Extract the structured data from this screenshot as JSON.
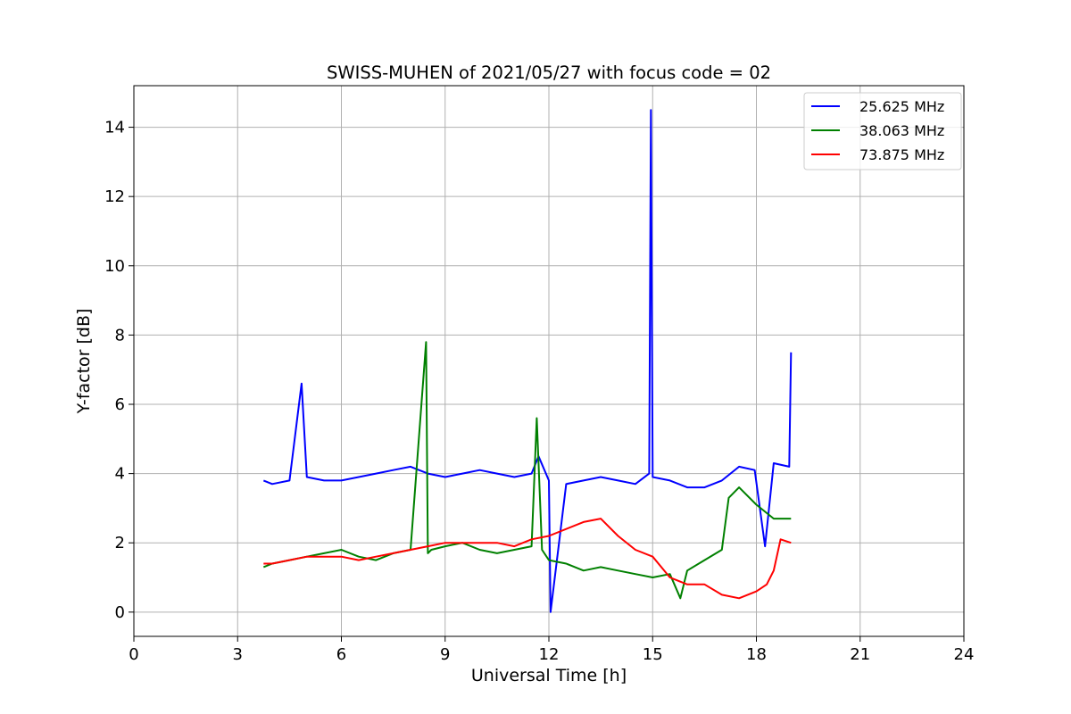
{
  "chart_data": {
    "type": "line",
    "title": "SWISS-MUHEN of 2021/05/27 with focus code = 02",
    "xlabel": "Universal Time [h]",
    "ylabel": "Y-factor [dB]",
    "xlim": [
      0,
      24
    ],
    "ylim": [
      -0.7,
      15.2
    ],
    "xticks": [
      0,
      3,
      6,
      9,
      12,
      15,
      18,
      21,
      24
    ],
    "yticks": [
      0,
      2,
      4,
      6,
      8,
      10,
      12,
      14
    ],
    "grid": true,
    "legend": {
      "placement": "top-right"
    },
    "series": [
      {
        "name": "25.625 MHz",
        "color": "#0000ff",
        "x": [
          3.75,
          4.0,
          4.5,
          4.85,
          5.0,
          5.5,
          6.0,
          6.5,
          7.0,
          7.5,
          8.0,
          8.5,
          9.0,
          9.5,
          10.0,
          10.5,
          11.0,
          11.5,
          11.7,
          12.0,
          12.05,
          12.5,
          13.0,
          13.5,
          14.0,
          14.5,
          14.9,
          14.95,
          15.0,
          15.5,
          16.0,
          16.5,
          17.0,
          17.5,
          17.95,
          18.25,
          18.5,
          18.95,
          19.0
        ],
        "y": [
          3.8,
          3.7,
          3.8,
          6.6,
          3.9,
          3.8,
          3.8,
          3.9,
          4.0,
          4.1,
          4.2,
          4.0,
          3.9,
          4.0,
          4.1,
          4.0,
          3.9,
          4.0,
          4.5,
          3.8,
          0.0,
          3.7,
          3.8,
          3.9,
          3.8,
          3.7,
          4.0,
          14.5,
          3.9,
          3.8,
          3.6,
          3.6,
          3.8,
          4.2,
          4.1,
          1.9,
          4.3,
          4.2,
          7.5
        ]
      },
      {
        "name": "38.063 MHz",
        "color": "#008000",
        "x": [
          3.75,
          4.0,
          4.5,
          5.0,
          5.5,
          6.0,
          6.5,
          7.0,
          7.5,
          8.0,
          8.45,
          8.5,
          8.6,
          9.0,
          9.5,
          10.0,
          10.5,
          11.0,
          11.5,
          11.65,
          11.8,
          12.0,
          12.5,
          13.0,
          13.5,
          14.0,
          14.5,
          15.0,
          15.5,
          15.8,
          16.0,
          16.5,
          17.0,
          17.2,
          17.5,
          18.0,
          18.5,
          19.0
        ],
        "y": [
          1.3,
          1.4,
          1.5,
          1.6,
          1.7,
          1.8,
          1.6,
          1.5,
          1.7,
          1.8,
          7.8,
          1.7,
          1.8,
          1.9,
          2.0,
          1.8,
          1.7,
          1.8,
          1.9,
          5.6,
          1.8,
          1.5,
          1.4,
          1.2,
          1.3,
          1.2,
          1.1,
          1.0,
          1.1,
          0.4,
          1.2,
          1.5,
          1.8,
          3.3,
          3.6,
          3.1,
          2.7,
          2.7
        ]
      },
      {
        "name": "73.875 MHz",
        "color": "#ff0000",
        "x": [
          3.75,
          4.0,
          4.5,
          5.0,
          5.5,
          6.0,
          6.5,
          7.0,
          7.5,
          8.0,
          8.5,
          9.0,
          9.5,
          10.0,
          10.5,
          11.0,
          11.5,
          12.0,
          12.5,
          13.0,
          13.5,
          14.0,
          14.5,
          15.0,
          15.5,
          16.0,
          16.5,
          17.0,
          17.5,
          18.0,
          18.3,
          18.5,
          18.7,
          19.0
        ],
        "y": [
          1.4,
          1.4,
          1.5,
          1.6,
          1.6,
          1.6,
          1.5,
          1.6,
          1.7,
          1.8,
          1.9,
          2.0,
          2.0,
          2.0,
          2.0,
          1.9,
          2.1,
          2.2,
          2.4,
          2.6,
          2.7,
          2.2,
          1.8,
          1.6,
          1.0,
          0.8,
          0.8,
          0.5,
          0.4,
          0.6,
          0.8,
          1.2,
          2.1,
          2.0
        ]
      }
    ]
  }
}
